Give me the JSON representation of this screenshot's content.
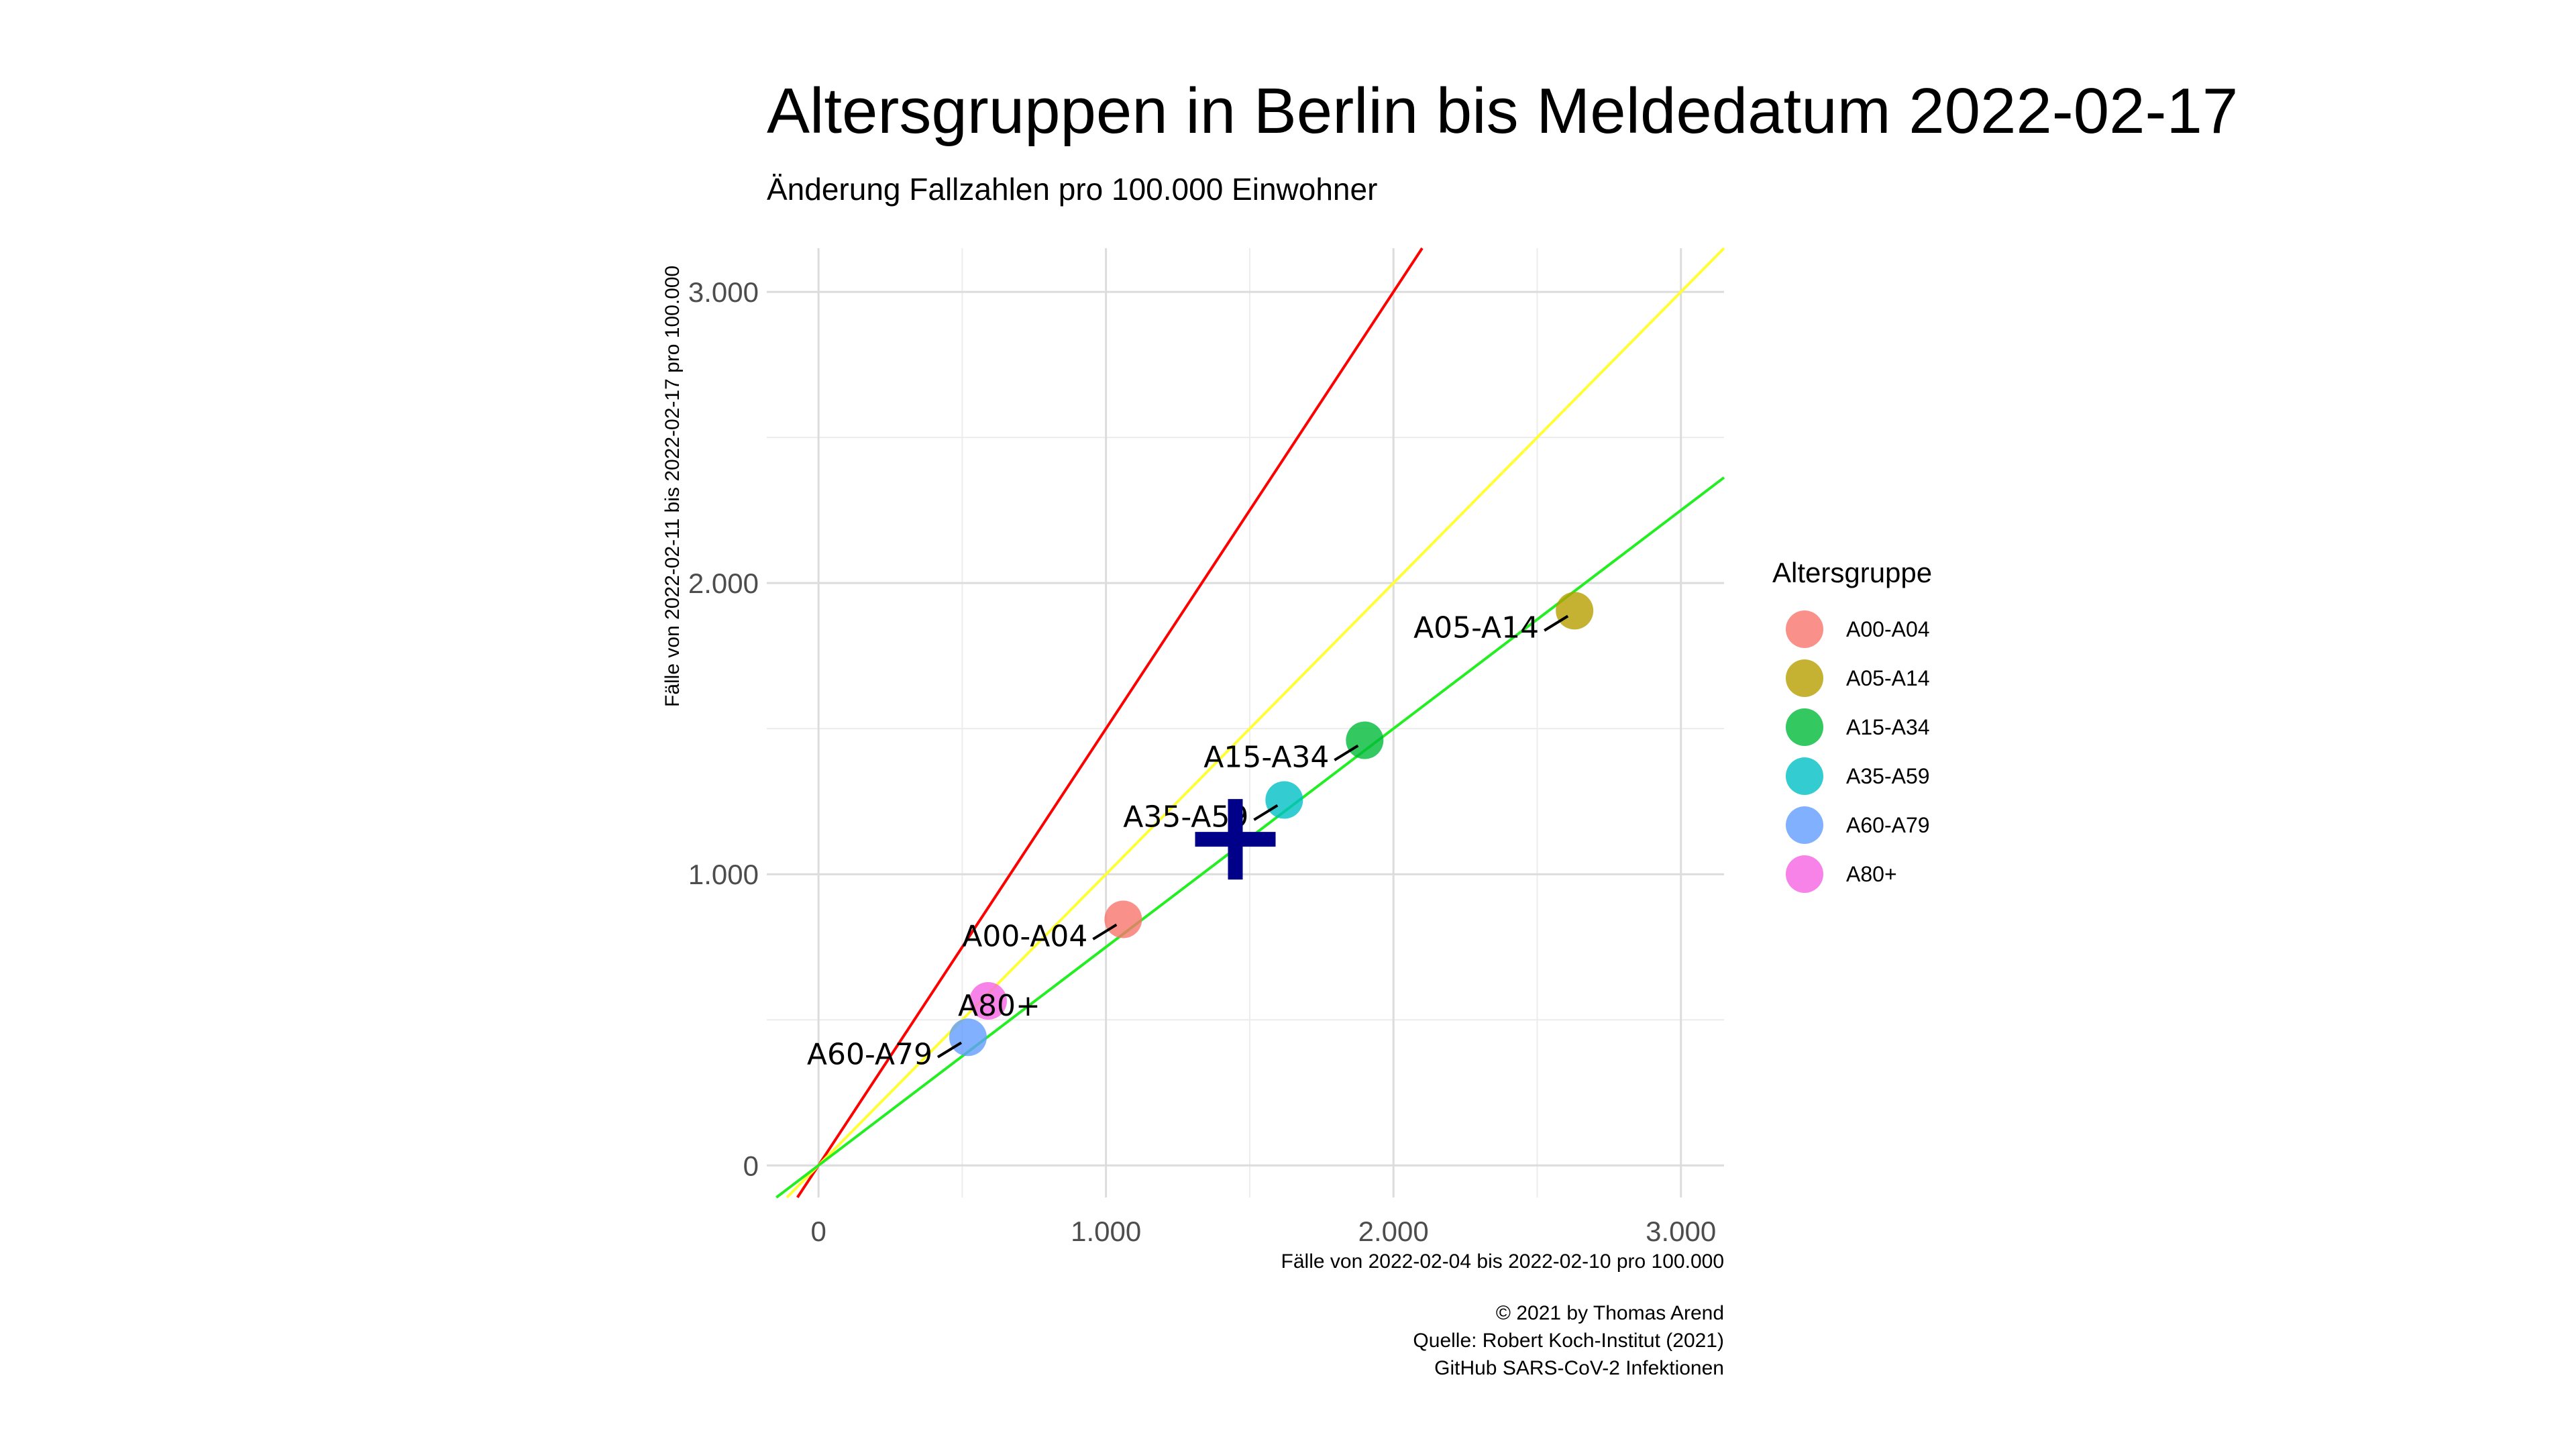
{
  "chart_data": {
    "type": "scatter",
    "title": "Altersgruppen in Berlin bis Meldedatum 2022-02-17",
    "subtitle": "Änderung Fallzahlen pro 100.000 Einwohner",
    "xlabel": "Fälle von 2022-02-04 bis 2022-02-10 pro 100.000",
    "ylabel": "Fälle von 2022-02-11 bis 2022-02-17 pro 100.000",
    "xlim": [
      -180,
      3150
    ],
    "ylim": [
      -110,
      3150
    ],
    "x_ticks": [
      0,
      1000,
      2000,
      3000
    ],
    "x_tick_labels": [
      "0",
      "1.000",
      "2.000",
      "3.000"
    ],
    "y_ticks": [
      0,
      1000,
      2000,
      3000
    ],
    "y_tick_labels": [
      "0",
      "1.000",
      "2.000",
      "3.000"
    ],
    "grid": true,
    "legend": {
      "title": "Altersgruppe",
      "position": "right"
    },
    "series": [
      {
        "name": "A00-A04",
        "x": 1060,
        "y": 845,
        "color": "#F8766D"
      },
      {
        "name": "A05-A14",
        "x": 2630,
        "y": 1905,
        "color": "#B79F00"
      },
      {
        "name": "A15-A34",
        "x": 1900,
        "y": 1460,
        "color": "#00BA38"
      },
      {
        "name": "A35-A59",
        "x": 1620,
        "y": 1255,
        "color": "#00BFC4"
      },
      {
        "name": "A60-A79",
        "x": 520,
        "y": 440,
        "color": "#619CFF"
      },
      {
        "name": "A80+",
        "x": 590,
        "y": 565,
        "color": "#F564E3"
      }
    ],
    "reference_lines": [
      {
        "slope": 1.5,
        "color": "#FF0000"
      },
      {
        "slope": 1.0,
        "color": "#FFFF33"
      },
      {
        "slope": 0.75,
        "color": "#22EE22"
      }
    ],
    "mean_marker": {
      "x": 1450,
      "y": 1120,
      "color": "#000088",
      "shape": "plus"
    }
  },
  "caption": {
    "line1": "© 2021 by Thomas Arend",
    "line2": "Quelle: Robert Koch-Institut (2021)",
    "line3": "GitHub SARS-CoV-2 Infektionen"
  }
}
